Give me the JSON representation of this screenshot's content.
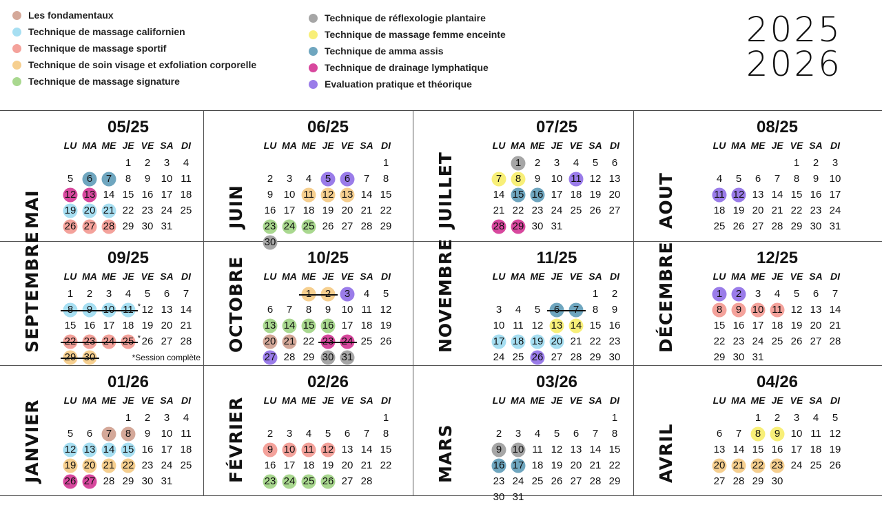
{
  "legend": [
    {
      "key": "fondamentaux",
      "label": "Les fondamentaux",
      "color": "#d4a899"
    },
    {
      "key": "californien",
      "label": "Technique de massage californien",
      "color": "#a7dff2"
    },
    {
      "key": "sportif",
      "label": "Technique de massage sportif",
      "color": "#f4a29b"
    },
    {
      "key": "visage",
      "label": "Technique de soin visage et exfoliation corporelle",
      "color": "#f6cf8f"
    },
    {
      "key": "signature",
      "label": "Technique de massage signature",
      "color": "#a9d88f"
    },
    {
      "key": "reflexo",
      "label": "Technique de  réflexologie plantaire",
      "color": "#a6a6a6"
    },
    {
      "key": "enceinte",
      "label": "Technique de massage femme enceinte",
      "color": "#f8ef78"
    },
    {
      "key": "amma",
      "label": "Technique de amma assis",
      "color": "#6fa6bf"
    },
    {
      "key": "drainage",
      "label": "Technique de drainage lymphatique",
      "color": "#d8489e"
    },
    {
      "key": "evaluation",
      "label": "Evaluation pratique et théorique",
      "color": "#9a7ce9"
    }
  ],
  "years": [
    "2025",
    "2026"
  ],
  "weekdays": [
    "LU",
    "MA",
    "ME",
    "JE",
    "VE",
    "SA",
    "DI"
  ],
  "months": [
    {
      "name": "MAI",
      "code": "05/25",
      "start": 3,
      "days": 31,
      "marks": {
        "6": "amma",
        "7": "amma",
        "12": "drainage",
        "13": "drainage",
        "19": "californien",
        "20": "californien",
        "21": "californien",
        "26": "sportif",
        "27": "sportif",
        "28": "sportif"
      }
    },
    {
      "name": "JUIN",
      "code": "06/25",
      "start": 6,
      "days": 30,
      "marks": {
        "5": "evaluation",
        "6": "evaluation",
        "11": "visage",
        "12": "visage",
        "13": "visage",
        "23": "signature",
        "24": "signature",
        "25": "signature",
        "30": "reflexo"
      }
    },
    {
      "name": "JUILLET",
      "code": "07/25",
      "start": 1,
      "days": 31,
      "marks": {
        "1": "reflexo",
        "7": "enceinte",
        "8": "enceinte",
        "11": "evaluation",
        "15": "amma",
        "16": "amma",
        "28": "drainage",
        "29": "drainage"
      }
    },
    {
      "name": "AOUT",
      "code": "08/25",
      "start": 4,
      "days": 31,
      "marks": {
        "11": "evaluation",
        "12": "evaluation"
      }
    },
    {
      "name": "SEPTEMBRE",
      "code": "09/25",
      "start": 0,
      "days": 30,
      "marks": {
        "8": "californien",
        "9": "californien",
        "10": "californien",
        "11": "californien",
        "22": "sportif",
        "23": "sportif",
        "24": "sportif",
        "25": "sportif",
        "29": "visage",
        "30": "visage"
      },
      "struck": [
        8,
        9,
        10,
        11,
        22,
        23,
        24,
        25,
        29,
        30
      ],
      "asterisk": [
        11,
        25
      ],
      "note": "*Session complète"
    },
    {
      "name": "OCTOBRE",
      "code": "10/25",
      "start": 2,
      "days": 31,
      "marks": {
        "1": "visage",
        "2": "visage",
        "3": "evaluation",
        "13": "signature",
        "14": "signature",
        "15": "signature",
        "16": "signature",
        "20": "fondamentaux",
        "21": "fondamentaux",
        "23": "drainage",
        "24": "drainage",
        "27": "evaluation",
        "30": "reflexo",
        "31": "reflexo"
      },
      "struck": [
        1,
        2,
        23,
        24
      ]
    },
    {
      "name": "NOVEMBRE",
      "code": "11/25",
      "start": 5,
      "days": 30,
      "marks": {
        "6": "amma",
        "7": "amma",
        "13": "enceinte",
        "14": "enceinte",
        "17": "californien",
        "18": "californien",
        "19": "californien",
        "20": "californien",
        "26": "evaluation"
      },
      "struck": [
        6,
        7
      ]
    },
    {
      "name": "DÉCEMBRE",
      "code": "12/25",
      "start": 0,
      "days": 31,
      "marks": {
        "1": "evaluation",
        "2": "evaluation",
        "8": "sportif",
        "9": "sportif",
        "10": "sportif",
        "11": "sportif"
      }
    },
    {
      "name": "JANVIER",
      "code": "01/26",
      "start": 3,
      "days": 31,
      "marks": {
        "7": "fondamentaux",
        "8": "fondamentaux",
        "12": "californien",
        "13": "californien",
        "14": "californien",
        "15": "californien",
        "19": "visage",
        "20": "visage",
        "21": "visage",
        "22": "visage",
        "26": "drainage",
        "27": "drainage"
      }
    },
    {
      "name": "FÉVRIER",
      "code": "02/26",
      "start": 6,
      "days": 28,
      "marks": {
        "9": "sportif",
        "10": "sportif",
        "11": "sportif",
        "12": "sportif",
        "23": "signature",
        "24": "signature",
        "25": "signature",
        "26": "signature"
      }
    },
    {
      "name": "MARS",
      "code": "03/26",
      "start": 6,
      "days": 31,
      "marks": {
        "9": "reflexo",
        "10": "reflexo",
        "16": "amma",
        "17": "amma"
      }
    },
    {
      "name": "AVRIL",
      "code": "04/26",
      "start": 2,
      "days": 30,
      "marks": {
        "8": "enceinte",
        "9": "enceinte",
        "20": "visage",
        "21": "visage",
        "22": "visage",
        "23": "visage"
      }
    }
  ]
}
